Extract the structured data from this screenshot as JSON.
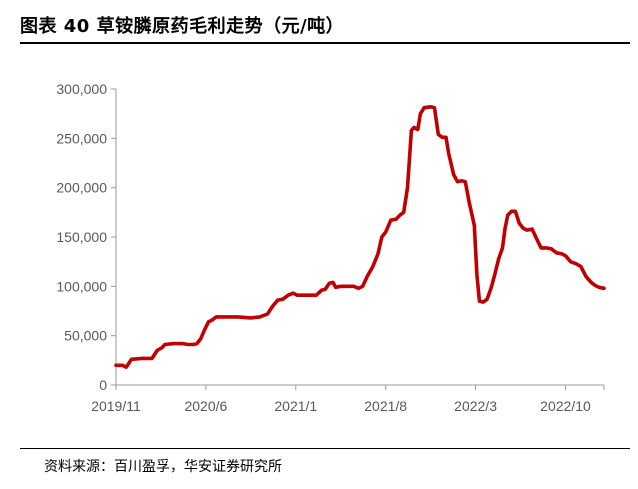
{
  "header": {
    "title": "图表 40 草铵膦原药毛利走势（元/吨）"
  },
  "footer": {
    "source": "资料来源：百川盈孚，华安证券研究所"
  },
  "colors": {
    "line": "#C00000",
    "axis": "#999999",
    "text": "#595959"
  },
  "chart_data": {
    "type": "line",
    "title": "草铵膦原药毛利走势（元/吨）",
    "xlabel": "",
    "ylabel": "元/吨",
    "ylim": [
      0,
      300000
    ],
    "yticks": [
      0,
      50000,
      100000,
      150000,
      200000,
      250000,
      300000
    ],
    "ytick_labels": [
      "0",
      "50,000",
      "100,000",
      "150,000",
      "200,000",
      "250,000",
      "300,000"
    ],
    "xticks": [
      0,
      7,
      14,
      21,
      28,
      35
    ],
    "xtick_labels": [
      "2019/11",
      "2020/6",
      "2021/1",
      "2021/8",
      "2022/3",
      "2022/10"
    ],
    "xlim": [
      0,
      38
    ],
    "grid": false,
    "series": [
      {
        "name": "草铵膦原药毛利",
        "points": [
          [
            0,
            20000
          ],
          [
            0.5,
            20000
          ],
          [
            0.8,
            18000
          ],
          [
            1.2,
            26000
          ],
          [
            2.0,
            27000
          ],
          [
            2.8,
            27000
          ],
          [
            3.2,
            35000
          ],
          [
            3.6,
            38000
          ],
          [
            3.8,
            41000
          ],
          [
            4.5,
            42000
          ],
          [
            5.2,
            42000
          ],
          [
            5.6,
            41000
          ],
          [
            6.0,
            41000
          ],
          [
            6.3,
            42000
          ],
          [
            6.6,
            47000
          ],
          [
            6.9,
            56000
          ],
          [
            7.2,
            64000
          ],
          [
            7.5,
            66000
          ],
          [
            7.8,
            69000
          ],
          [
            8.5,
            69000
          ],
          [
            9.5,
            69000
          ],
          [
            10.5,
            68000
          ],
          [
            11.2,
            69000
          ],
          [
            11.8,
            72000
          ],
          [
            12.2,
            80000
          ],
          [
            12.6,
            86000
          ],
          [
            13.0,
            87000
          ],
          [
            13.4,
            91000
          ],
          [
            13.8,
            93000
          ],
          [
            14.1,
            91000
          ],
          [
            14.6,
            91000
          ],
          [
            15.2,
            91000
          ],
          [
            15.6,
            91000
          ],
          [
            16.0,
            96000
          ],
          [
            16.3,
            97000
          ],
          [
            16.6,
            103000
          ],
          [
            16.9,
            104000
          ],
          [
            17.1,
            99000
          ],
          [
            17.5,
            100000
          ],
          [
            18.0,
            100000
          ],
          [
            18.5,
            100000
          ],
          [
            18.9,
            98000
          ],
          [
            19.2,
            100000
          ],
          [
            19.6,
            111000
          ],
          [
            20.0,
            120000
          ],
          [
            20.4,
            133000
          ],
          [
            20.7,
            150000
          ],
          [
            21.0,
            155000
          ],
          [
            21.4,
            167000
          ],
          [
            21.8,
            168000
          ],
          [
            22.1,
            172000
          ],
          [
            22.4,
            175000
          ],
          [
            22.7,
            200000
          ],
          [
            23.0,
            258000
          ],
          [
            23.2,
            261000
          ],
          [
            23.5,
            259000
          ],
          [
            23.7,
            275000
          ],
          [
            24.0,
            281000
          ],
          [
            24.5,
            282000
          ],
          [
            24.8,
            281000
          ],
          [
            25.1,
            254000
          ],
          [
            25.4,
            251000
          ],
          [
            25.7,
            251000
          ],
          [
            25.9,
            235000
          ],
          [
            26.3,
            213000
          ],
          [
            26.6,
            206000
          ],
          [
            26.9,
            207000
          ],
          [
            27.2,
            206000
          ],
          [
            27.5,
            185000
          ],
          [
            27.9,
            162000
          ],
          [
            28.1,
            112000
          ],
          [
            28.3,
            85000
          ],
          [
            28.6,
            84000
          ],
          [
            28.9,
            87000
          ],
          [
            29.2,
            98000
          ],
          [
            29.5,
            112000
          ],
          [
            29.8,
            128000
          ],
          [
            30.1,
            139000
          ],
          [
            30.3,
            159000
          ],
          [
            30.5,
            172000
          ],
          [
            30.8,
            176000
          ],
          [
            31.1,
            176000
          ],
          [
            31.4,
            164000
          ],
          [
            31.7,
            159000
          ],
          [
            32.0,
            157000
          ],
          [
            32.4,
            158000
          ],
          [
            32.8,
            147000
          ],
          [
            33.1,
            139000
          ],
          [
            33.5,
            139000
          ],
          [
            33.9,
            138000
          ],
          [
            34.3,
            134000
          ],
          [
            34.7,
            133000
          ],
          [
            35.0,
            131000
          ],
          [
            35.4,
            125000
          ],
          [
            35.8,
            123000
          ],
          [
            36.2,
            120000
          ],
          [
            36.6,
            110000
          ],
          [
            37.0,
            104000
          ],
          [
            37.3,
            101000
          ],
          [
            37.6,
            99000
          ],
          [
            38.0,
            98000
          ]
        ]
      }
    ]
  }
}
